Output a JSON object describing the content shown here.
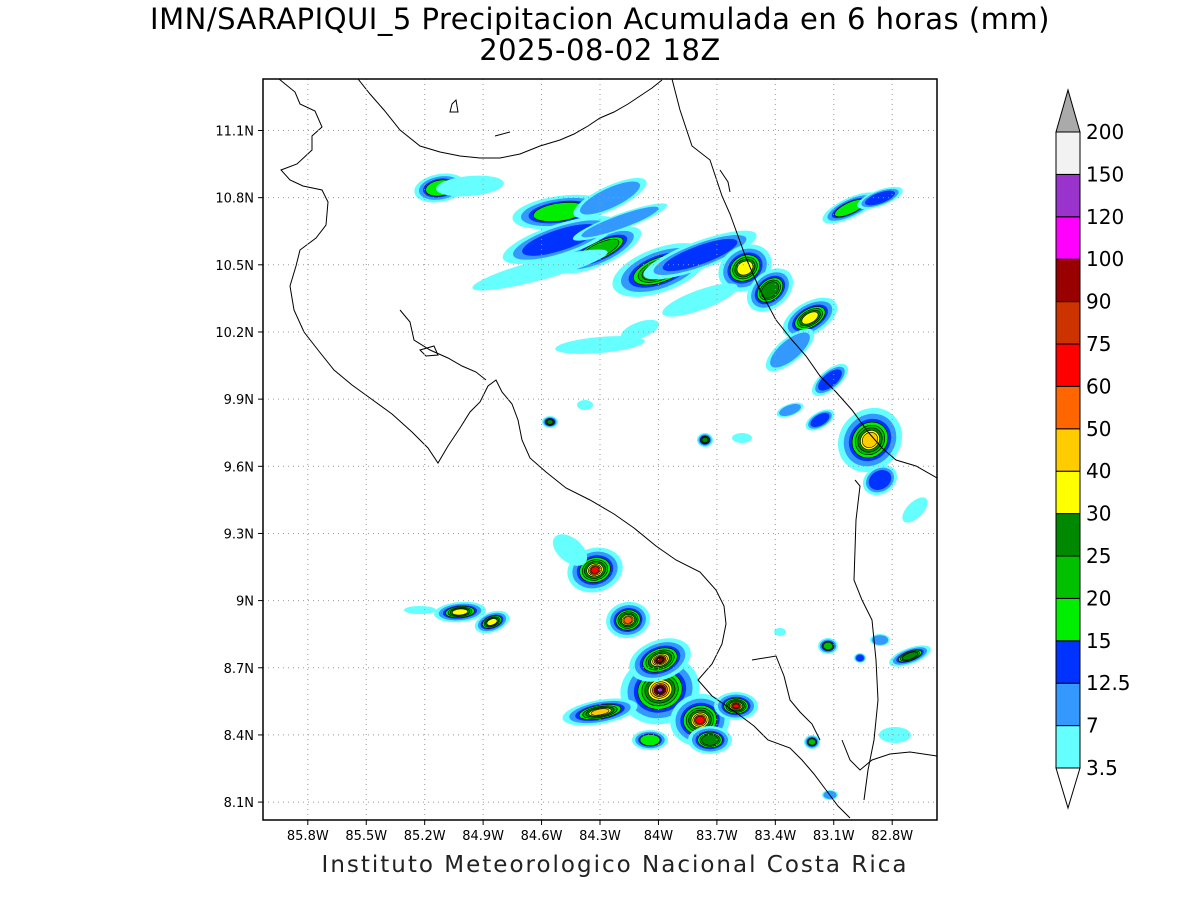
{
  "title": {
    "line1": "IMN/SARAPIQUI_5 Precipitacion Acumulada en 6 horas (mm)",
    "line2": "2025-08-02 18Z"
  },
  "footer": "Instituto Meteorologico Nacional Costa Rica",
  "map": {
    "lon_range": [
      -86.03,
      -82.57
    ],
    "lat_range": [
      8.02,
      11.33
    ],
    "x_ticks": [
      "85.8W",
      "85.5W",
      "85.2W",
      "84.9W",
      "84.6W",
      "84.3W",
      "84W",
      "83.7W",
      "83.4W",
      "83.1W",
      "82.8W"
    ],
    "x_tick_values": [
      -85.8,
      -85.5,
      -85.2,
      -84.9,
      -84.6,
      -84.3,
      -84.0,
      -83.7,
      -83.4,
      -83.1,
      -82.8
    ],
    "y_ticks": [
      "8.1N",
      "8.4N",
      "8.7N",
      "9N",
      "9.3N",
      "9.6N",
      "9.9N",
      "10.2N",
      "10.5N",
      "10.8N",
      "11.1N"
    ],
    "y_tick_values": [
      8.1,
      8.4,
      8.7,
      9.0,
      9.3,
      9.6,
      9.9,
      10.2,
      10.5,
      10.8,
      11.1
    ],
    "grid": "dotted"
  },
  "colorbar": {
    "levels": [
      "3.5",
      "7",
      "12.5",
      "15",
      "20",
      "25",
      "30",
      "40",
      "50",
      "60",
      "75",
      "90",
      "100",
      "120",
      "150",
      "200"
    ],
    "colors": [
      "#66ffff",
      "#3399ff",
      "#0033ff",
      "#00ee00",
      "#00c000",
      "#008800",
      "#ffff00",
      "#ffcc00",
      "#ff6600",
      "#ff0000",
      "#cc3300",
      "#990000",
      "#ff00ff",
      "#9933cc",
      "#f2f2f2",
      "#aaaaaa"
    ]
  }
}
